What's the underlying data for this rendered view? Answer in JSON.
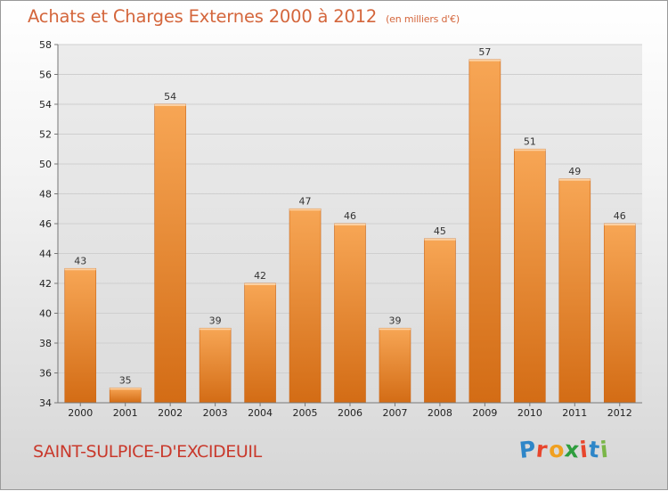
{
  "header": {
    "title": "Achats et Charges Externes 2000 à 2012",
    "unit": "(en milliers d'€)"
  },
  "footer": {
    "commune": "SAINT-SULPICE-D'EXCIDEUIL",
    "logo": {
      "letters": [
        "P",
        "r",
        "o",
        "x",
        "i",
        "t",
        "i"
      ],
      "colors": [
        "#2e86c8",
        "#e8452c",
        "#f0a020",
        "#2e9e3e",
        "#e8452c",
        "#2e86c8",
        "#7ab648"
      ]
    }
  },
  "chart_data": {
    "type": "bar",
    "title": "Achats et Charges Externes 2000 à 2012",
    "subtitle": "(en milliers d'€)",
    "categories": [
      "2000",
      "2001",
      "2002",
      "2003",
      "2004",
      "2005",
      "2006",
      "2007",
      "2008",
      "2009",
      "2010",
      "2011",
      "2012"
    ],
    "values": [
      43,
      35,
      54,
      39,
      42,
      47,
      46,
      39,
      45,
      57,
      51,
      49,
      46
    ],
    "ylim": [
      34,
      58
    ],
    "yticks": [
      34,
      36,
      38,
      40,
      42,
      44,
      46,
      48,
      50,
      52,
      54,
      56,
      58
    ],
    "grid": true,
    "bar_color": "#f0902f",
    "xlabel": "",
    "ylabel": ""
  }
}
